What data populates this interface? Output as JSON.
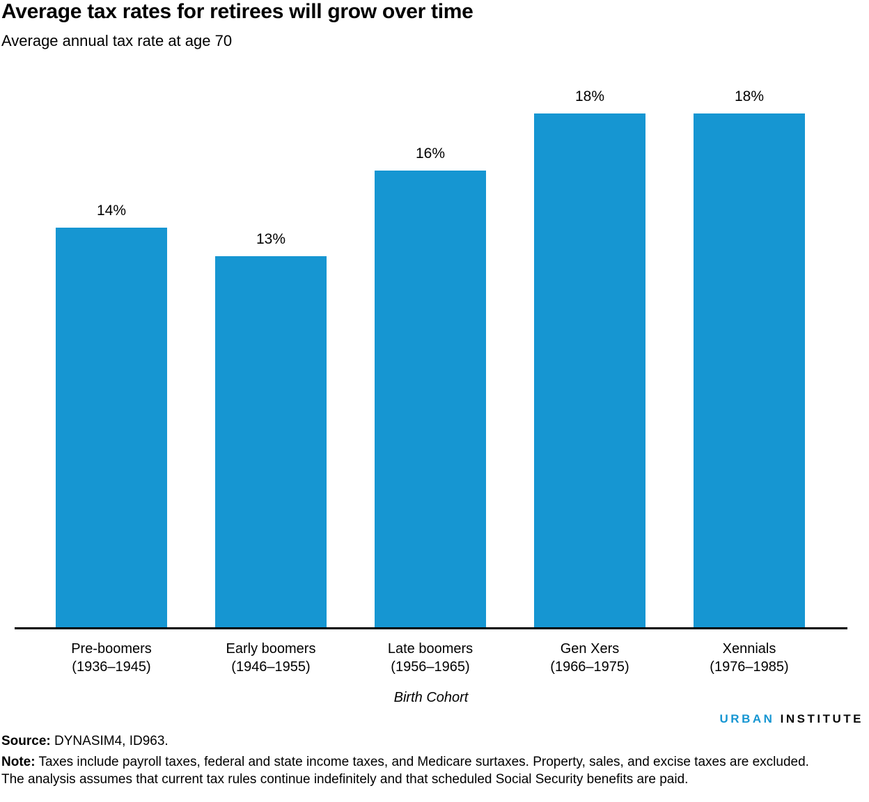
{
  "header": {
    "title": "Average tax rates for retirees will grow over time",
    "subtitle": "Average annual tax rate at age 70"
  },
  "chart_data": {
    "type": "bar",
    "title": "Average tax rates for retirees will grow over time",
    "subtitle": "Average annual tax rate at age 70",
    "categories": [
      {
        "name": "Pre-boomers",
        "range": "(1936–1945)"
      },
      {
        "name": "Early boomers",
        "range": "(1946–1955)"
      },
      {
        "name": "Late boomers",
        "range": "(1956–1965)"
      },
      {
        "name": "Gen Xers",
        "range": "(1966–1975)"
      },
      {
        "name": "Xennials",
        "range": "(1976–1985)"
      }
    ],
    "values": [
      14,
      13,
      16,
      18,
      18
    ],
    "value_labels": [
      "14%",
      "13%",
      "16%",
      "18%",
      "18%"
    ],
    "xlabel": "Birth Cohort",
    "ylabel": "",
    "ylim": [
      0,
      20
    ],
    "grid": false,
    "legend": false,
    "bar_color": "#1696d2",
    "axis_line_color": "#000000"
  },
  "footer": {
    "logo_urban": "URBAN",
    "logo_institute": "INSTITUTE",
    "source_label": "Source:",
    "source_text": " DYNASIM4, ID963.",
    "note_label": "Note:",
    "note_text": " Taxes include payroll taxes, federal and state income taxes, and Medicare surtaxes. Property, sales, and excise taxes are excluded. The analysis assumes that current tax rules continue indefinitely and that scheduled Social Security benefits are paid."
  }
}
